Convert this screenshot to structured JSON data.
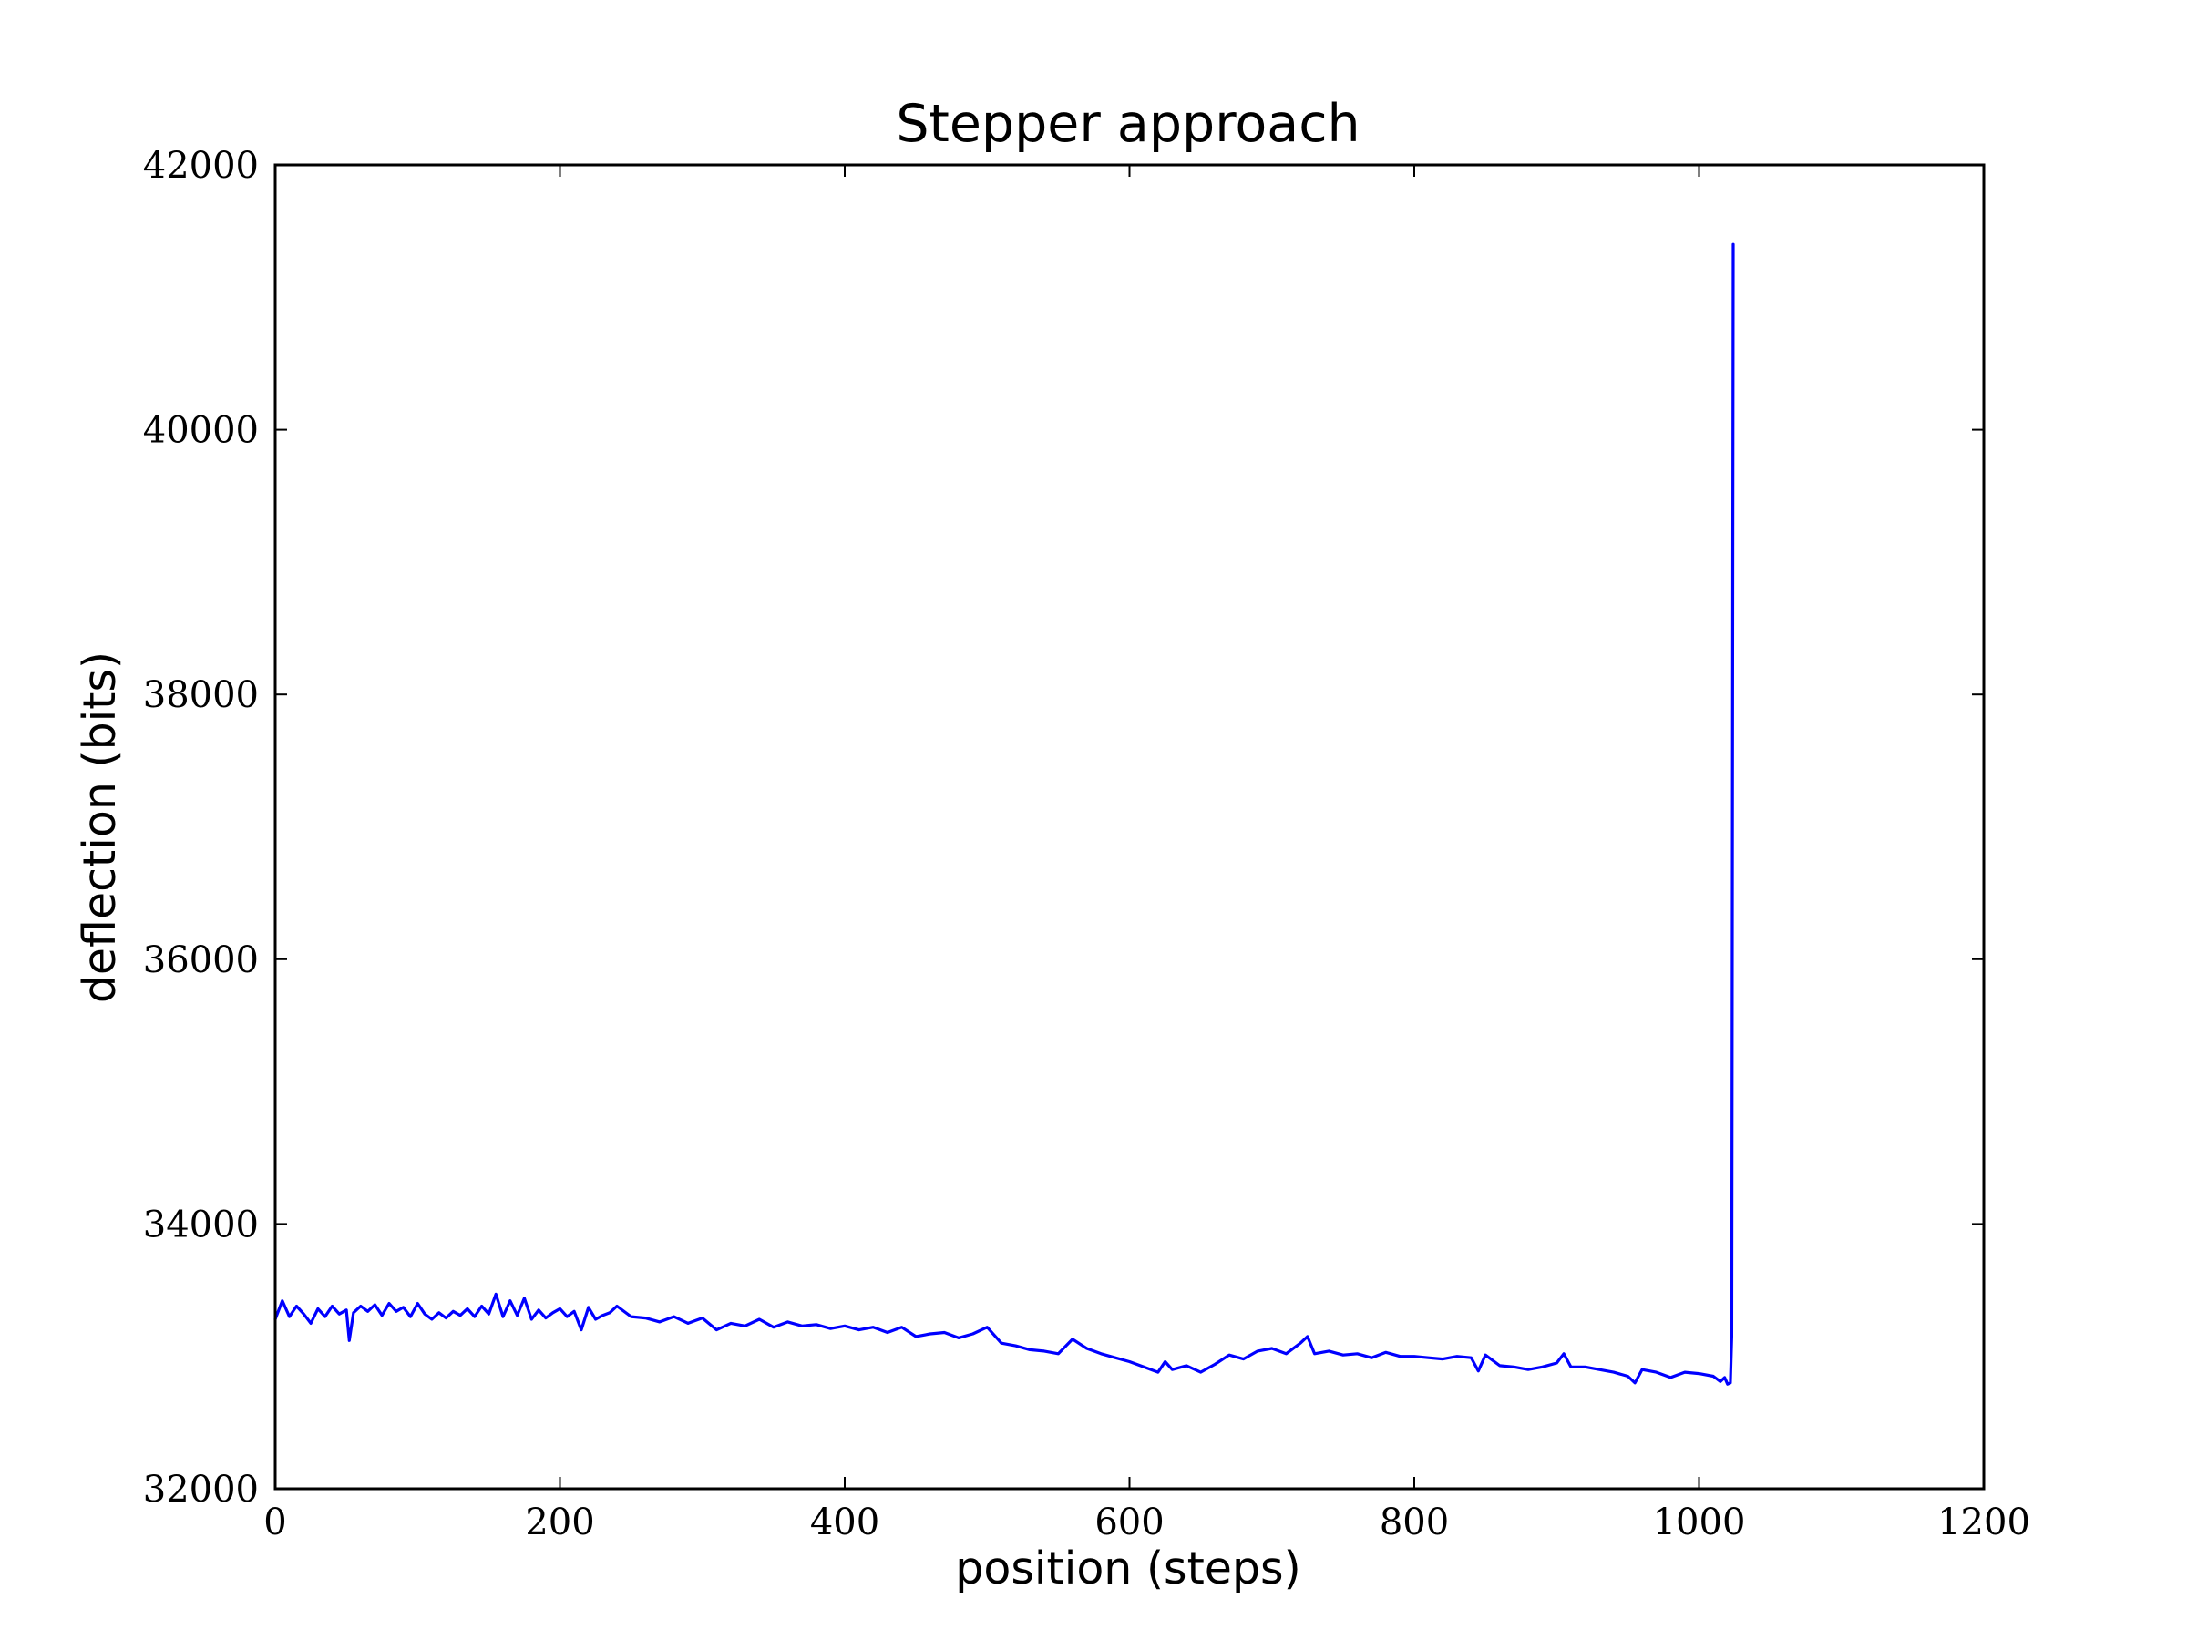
{
  "chart_data": {
    "type": "line",
    "title": "Stepper approach",
    "xlabel": "position (steps)",
    "ylabel": "deflection (bits)",
    "xlim": [
      0,
      1200
    ],
    "ylim": [
      32000,
      42000
    ],
    "xticks": [
      0,
      200,
      400,
      600,
      800,
      1000,
      1200
    ],
    "yticks": [
      32000,
      34000,
      36000,
      38000,
      40000,
      42000
    ],
    "xtick_labels": [
      "0",
      "200",
      "400",
      "600",
      "800",
      "1000",
      "1200"
    ],
    "ytick_labels": [
      "32000",
      "34000",
      "36000",
      "38000",
      "40000",
      "42000"
    ],
    "grid": false,
    "legend": "none",
    "series": [
      {
        "color": "#0000ff",
        "x": [
          0,
          5,
          10,
          15,
          20,
          25,
          30,
          35,
          40,
          45,
          50,
          52,
          55,
          60,
          65,
          70,
          75,
          80,
          85,
          90,
          95,
          100,
          105,
          110,
          115,
          120,
          125,
          130,
          135,
          140,
          145,
          150,
          155,
          160,
          165,
          170,
          175,
          180,
          185,
          190,
          195,
          200,
          205,
          210,
          215,
          220,
          225,
          230,
          235,
          240,
          250,
          260,
          270,
          280,
          290,
          300,
          310,
          320,
          330,
          340,
          350,
          360,
          370,
          380,
          390,
          400,
          410,
          420,
          430,
          440,
          450,
          460,
          470,
          480,
          490,
          500,
          510,
          520,
          530,
          540,
          550,
          560,
          570,
          580,
          590,
          600,
          610,
          620,
          625,
          630,
          640,
          650,
          660,
          670,
          680,
          690,
          700,
          710,
          720,
          725,
          730,
          740,
          750,
          760,
          770,
          780,
          790,
          800,
          810,
          820,
          830,
          840,
          845,
          850,
          860,
          870,
          880,
          890,
          900,
          905,
          910,
          920,
          930,
          940,
          950,
          955,
          960,
          970,
          980,
          990,
          1000,
          1010,
          1015,
          1018,
          1020,
          1022,
          1023,
          1024
        ],
        "y": [
          33280,
          33420,
          33300,
          33380,
          33320,
          33250,
          33360,
          33300,
          33380,
          33320,
          33350,
          33120,
          33330,
          33380,
          33340,
          33390,
          33310,
          33400,
          33340,
          33370,
          33300,
          33400,
          33320,
          33280,
          33330,
          33290,
          33340,
          33310,
          33360,
          33300,
          33380,
          33320,
          33470,
          33300,
          33420,
          33310,
          33440,
          33280,
          33350,
          33290,
          33330,
          33360,
          33300,
          33340,
          33200,
          33370,
          33280,
          33310,
          33330,
          33380,
          33300,
          33290,
          33260,
          33300,
          33250,
          33290,
          33200,
          33250,
          33230,
          33280,
          33220,
          33260,
          33230,
          33240,
          33210,
          33230,
          33200,
          33220,
          33180,
          33220,
          33150,
          33170,
          33180,
          33140,
          33170,
          33220,
          33100,
          33080,
          33050,
          33040,
          33020,
          33130,
          33060,
          33020,
          32990,
          32960,
          32920,
          32880,
          32960,
          32900,
          32930,
          32880,
          32940,
          33010,
          32980,
          33040,
          33060,
          33020,
          33100,
          33150,
          33020,
          33040,
          33010,
          33020,
          32990,
          33030,
          33000,
          33000,
          32990,
          32980,
          33000,
          32990,
          32890,
          33010,
          32930,
          32920,
          32900,
          32920,
          32950,
          33020,
          32920,
          32920,
          32900,
          32880,
          32850,
          32800,
          32900,
          32880,
          32840,
          32880,
          32870,
          32850,
          32810,
          32840,
          32790,
          32800,
          33150,
          41400
        ]
      }
    ]
  }
}
